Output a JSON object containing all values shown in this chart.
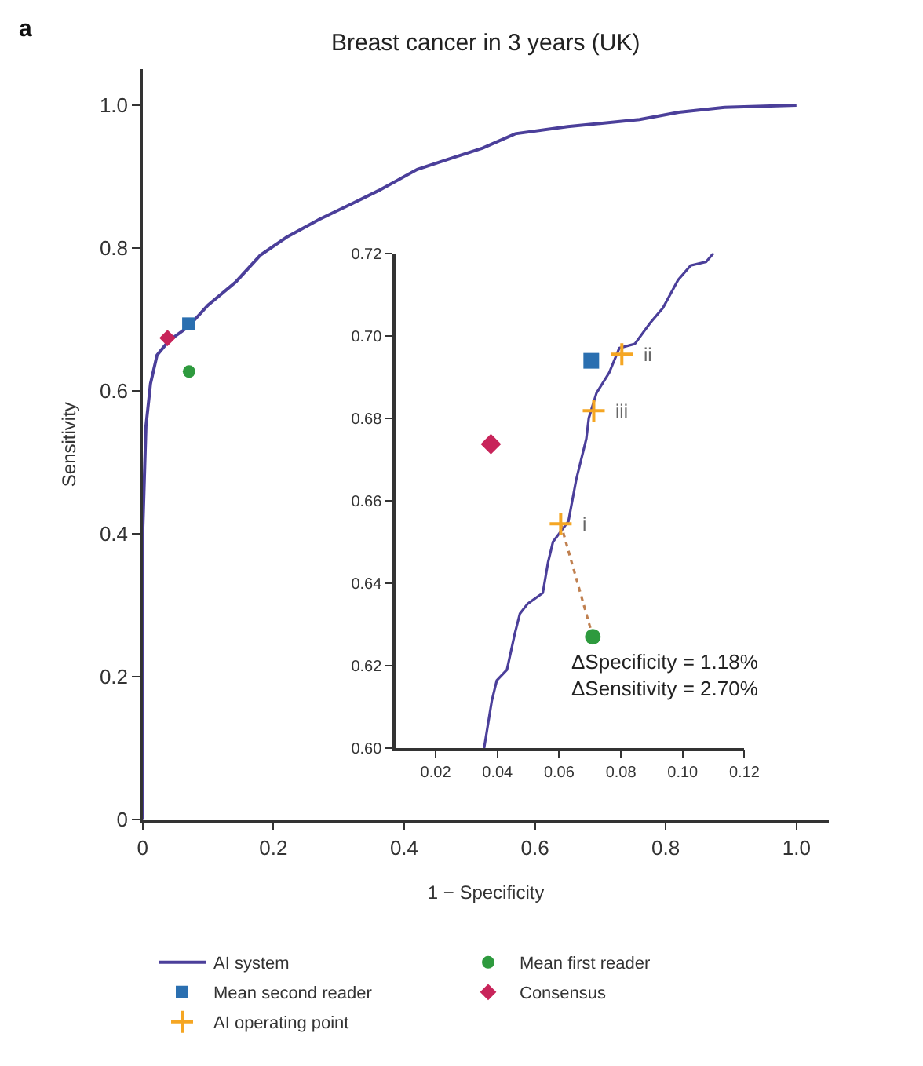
{
  "chart_data": [
    {
      "type": "line",
      "title": "Breast cancer in 3 years (UK)",
      "xlabel": "1 − Specificity",
      "ylabel": "Sensitivity",
      "xlim": [
        0,
        1.05
      ],
      "ylim": [
        0,
        1.05
      ],
      "xticks": [
        0,
        0.2,
        0.4,
        0.6,
        0.8,
        {
          "value": 1.0,
          "label": "1.0"
        }
      ],
      "yticks": [
        0,
        0.2,
        0.4,
        0.6,
        0.8,
        {
          "value": 1.0,
          "label": "1.0"
        }
      ],
      "legend": "bottom",
      "annotations": [
        "a"
      ],
      "series": [
        {
          "name": "AI system",
          "color": "#4b3f9a",
          "marker": "none",
          "x": [
            0,
            0,
            0.005,
            0.012,
            0.022,
            0.04,
            0.07,
            0.1,
            0.143,
            0.18,
            0.22,
            0.27,
            0.32,
            0.36,
            0.42,
            0.47,
            0.52,
            0.57,
            0.65,
            0.76,
            0.82,
            0.89,
            1.0
          ],
          "values": [
            0,
            0.4,
            0.55,
            0.61,
            0.65,
            0.67,
            0.69,
            0.72,
            0.753,
            0.79,
            0.815,
            0.84,
            0.862,
            0.88,
            0.91,
            0.925,
            0.94,
            0.96,
            0.97,
            0.98,
            0.99,
            0.997,
            1.0
          ]
        },
        {
          "name": "Mean first reader",
          "type": "scatter",
          "color": "#2e9a3e",
          "marker": "circle",
          "x": [
            0.071
          ],
          "values": [
            0.627
          ]
        },
        {
          "name": "Mean second reader",
          "type": "scatter",
          "color": "#2a6fb0",
          "marker": "square",
          "x": [
            0.07
          ],
          "values": [
            0.694
          ]
        },
        {
          "name": "Consensus",
          "type": "scatter",
          "color": "#c8245a",
          "marker": "diamond",
          "x": [
            0.038
          ],
          "values": [
            0.674
          ]
        }
      ]
    },
    {
      "type": "line",
      "xlim": [
        0.007,
        0.12
      ],
      "ylim": [
        0.6,
        0.72
      ],
      "xticks": [
        0.02,
        0.04,
        0.06,
        0.08,
        {
          "value": 0.1,
          "label": "0.10"
        },
        0.12
      ],
      "yticks": [
        {
          "value": 0.6,
          "label": "0.60"
        },
        0.62,
        0.64,
        0.66,
        0.68,
        {
          "value": 0.7,
          "label": "0.70"
        },
        0.72
      ],
      "annotations": [
        "ΔSpecificity = 1.18%\nΔSensitivity = 2.70%",
        {
          "text": "i",
          "x": 0.0605,
          "y": 0.6544
        },
        {
          "text": "iii",
          "x": 0.0712,
          "y": 0.6818
        },
        {
          "text": "ii",
          "x": 0.0803,
          "y": 0.6955
        }
      ],
      "series": [
        {
          "name": "AI system",
          "color": "#4b3f9a",
          "marker": "none",
          "x": [
            0.0357,
            0.0382,
            0.0398,
            0.0431,
            0.0456,
            0.0473,
            0.0498,
            0.0547,
            0.0564,
            0.058,
            0.0605,
            0.063,
            0.0655,
            0.0688,
            0.0696,
            0.0721,
            0.0762,
            0.0795,
            0.0845,
            0.0894,
            0.0936,
            0.0985,
            0.1026,
            0.1076,
            0.11
          ],
          "values": [
            0.6,
            0.6115,
            0.6164,
            0.619,
            0.6276,
            0.6326,
            0.635,
            0.6376,
            0.645,
            0.65,
            0.6525,
            0.655,
            0.665,
            0.675,
            0.68,
            0.6861,
            0.691,
            0.697,
            0.698,
            0.703,
            0.7067,
            0.7135,
            0.717,
            0.7179,
            0.72
          ]
        },
        {
          "color": "#c08050",
          "marker": "none",
          "line_style": "dotted",
          "x": [
            0.0605,
            0.0709
          ],
          "values": [
            0.6544,
            0.627
          ]
        },
        {
          "name": "AI operating point",
          "type": "scatter",
          "color": "#f5a623",
          "marker": "cross",
          "x": [
            0.0605,
            0.0712,
            0.0803
          ],
          "values": [
            0.6544,
            0.6818,
            0.6955
          ]
        },
        {
          "name": "Mean first reader",
          "type": "scatter",
          "color": "#2e9a3e",
          "marker": "circle",
          "x": [
            0.0709
          ],
          "values": [
            0.627
          ]
        },
        {
          "name": "Mean second reader",
          "type": "scatter",
          "color": "#2a6fb0",
          "marker": "square",
          "x": [
            0.0704
          ],
          "values": [
            0.6939
          ]
        },
        {
          "name": "Consensus",
          "type": "scatter",
          "color": "#c8245a",
          "marker": "diamond",
          "x": [
            0.0379
          ],
          "values": [
            0.6737
          ]
        }
      ]
    }
  ]
}
